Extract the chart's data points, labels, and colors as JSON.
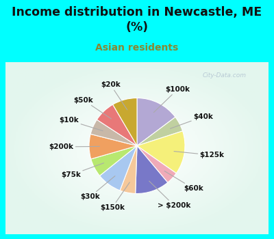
{
  "title": "Income distribution in Newcastle, ME\n(%)",
  "subtitle": "Asian residents",
  "title_color": "#111111",
  "subtitle_color": "#888833",
  "background_color": "#00ffff",
  "watermark": "City-Data.com",
  "labels": [
    "$100k",
    "$40k",
    "$125k",
    "$60k",
    "> $200k",
    "$150k",
    "$30k",
    "$75k",
    "$200k",
    "$10k",
    "$50k",
    "$20k"
  ],
  "values": [
    14,
    5,
    14,
    4,
    11,
    5,
    8,
    6,
    8,
    5,
    7,
    8
  ],
  "colors": [
    "#b3a8d4",
    "#c0d0a0",
    "#f5f07a",
    "#f0aab8",
    "#7878c8",
    "#f5c89a",
    "#a8c8f0",
    "#b8e870",
    "#f0a060",
    "#c8b8a8",
    "#e87878",
    "#c8a830"
  ],
  "title_fontsize": 12.5,
  "subtitle_fontsize": 10,
  "label_fontsize": 7.5
}
